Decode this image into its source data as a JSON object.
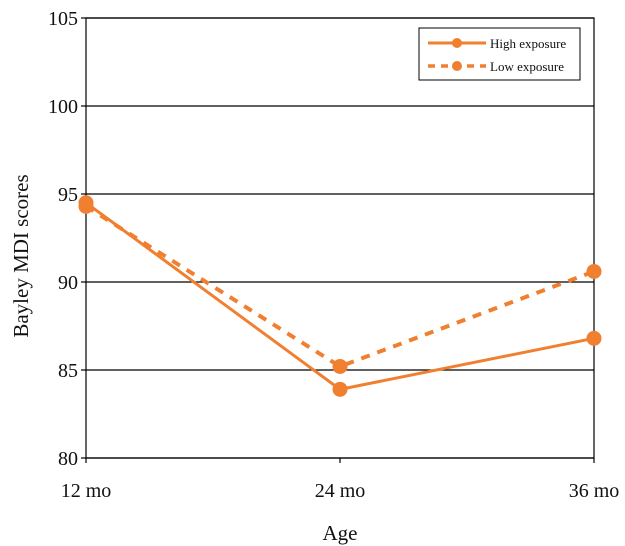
{
  "chart_data": {
    "type": "line",
    "title": "",
    "xlabel": "Age",
    "ylabel": "Bayley MDI scores",
    "categories": [
      "12 mo",
      "24 mo",
      "36 mo"
    ],
    "ylim": [
      80,
      105
    ],
    "yticks": [
      80,
      85,
      90,
      95,
      100,
      105
    ],
    "grid": "horizontal",
    "legend_position": "top-right",
    "series": [
      {
        "name": "High exposure",
        "values": [
          94.5,
          83.9,
          86.8
        ],
        "color": "#F07F2F",
        "line_style": "solid"
      },
      {
        "name": "Low exposure",
        "values": [
          94.3,
          85.2,
          90.6
        ],
        "color": "#F07F2F",
        "line_style": "dashed"
      }
    ]
  }
}
